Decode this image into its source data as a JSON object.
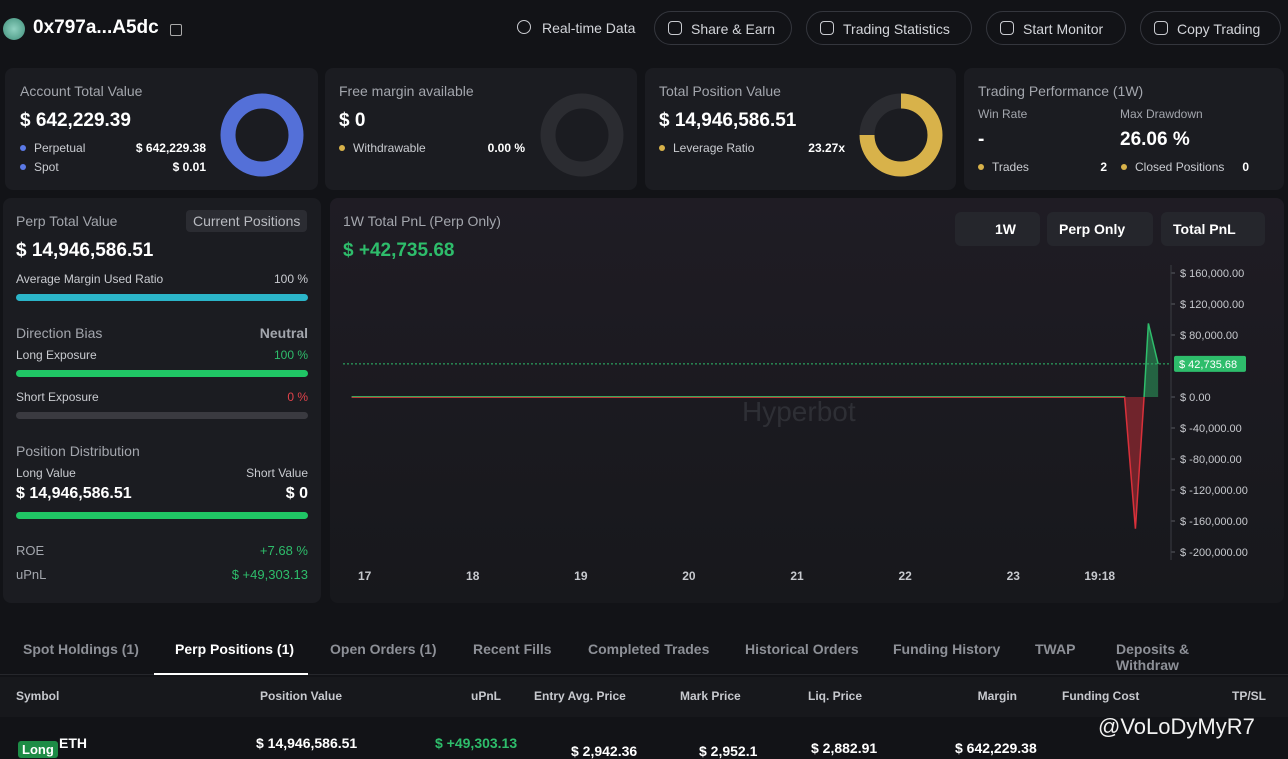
{
  "header": {
    "address": "0x797a...A5dc",
    "buttons": [
      "Real-time Data",
      "Share & Earn",
      "Trading Statistics",
      "Start Monitor",
      "Copy Trading"
    ]
  },
  "cards": {
    "account": {
      "title": "Account Total Value",
      "value": "$ 642,229.39",
      "rows": [
        {
          "label": "Perpetual",
          "value": "$ 642,229.38"
        },
        {
          "label": "Spot",
          "value": "$ 0.01"
        }
      ]
    },
    "margin": {
      "title": "Free margin available",
      "value": "$ 0",
      "rows": [
        {
          "label": "Withdrawable",
          "value": "0.00 %"
        }
      ]
    },
    "position": {
      "title": "Total Position Value",
      "value": "$ 14,946,586.51",
      "rows": [
        {
          "label": "Leverage Ratio",
          "value": "23.27x"
        }
      ]
    },
    "performance": {
      "title": "Trading Performance (1W)",
      "win_rate_label": "Win Rate",
      "win_rate": "-",
      "drawdown_label": "Max Drawdown",
      "drawdown": "26.06 %",
      "trades_label": "Trades",
      "trades": "2",
      "closed_label": "Closed Positions",
      "closed": "0"
    }
  },
  "perp": {
    "title": "Perp Total Value",
    "button": "Current Positions",
    "value": "$ 14,946,586.51",
    "margin_ratio_label": "Average Margin Used Ratio",
    "margin_ratio": "100 %",
    "bias_label": "Direction Bias",
    "bias": "Neutral",
    "long_label": "Long Exposure",
    "long": "100 %",
    "short_label": "Short Exposure",
    "short": "0 %",
    "distribution_label": "Position Distribution",
    "long_value_label": "Long Value",
    "short_value_label": "Short Value",
    "long_value": "$ 14,946,586.51",
    "short_value": "$ 0",
    "roe_label": "ROE",
    "roe": "+7.68 %",
    "upnl_label": "uPnL",
    "upnl": "$ +49,303.13"
  },
  "pnl_chart": {
    "type": "line",
    "title": "1W Total PnL (Perp Only)",
    "total": "$ +42,735.68",
    "selectors": [
      "1W",
      "Perp Only",
      "Total PnL"
    ],
    "watermark": "Hyperbot",
    "x": [
      16.88,
      24.03,
      24.13,
      24.21,
      24.25,
      24.34
    ],
    "series": [
      {
        "color": "#2ebd6b",
        "negative_color": "#d9303a",
        "values": [
          0,
          0,
          -170000,
          0,
          95000,
          42735.68
        ]
      }
    ],
    "current": {
      "value": 42735.68,
      "label": "$ 42,735.68"
    },
    "xlim": [
      16.8,
      24.45
    ],
    "xticks": [
      17,
      18,
      19,
      20,
      21,
      22,
      23,
      {
        "value": 23.8,
        "label": "19:18"
      }
    ],
    "ylim": [
      -200000,
      160000
    ],
    "yticks": [
      {
        "value": 160000,
        "label": "$ 160,000.00"
      },
      {
        "value": 120000,
        "label": "$ 120,000.00"
      },
      {
        "value": 80000,
        "label": "$ 80,000.00"
      },
      {
        "value": 0,
        "label": "$ 0.00"
      },
      {
        "value": -40000,
        "label": "$ -40,000.00"
      },
      {
        "value": -80000,
        "label": "$ -80,000.00"
      },
      {
        "value": -120000,
        "label": "$ -120,000.00"
      },
      {
        "value": -160000,
        "label": "$ -160,000.00"
      },
      {
        "value": -200000,
        "label": "$ -200,000.00"
      }
    ]
  },
  "tabs": [
    "Spot Holdings (1)",
    "Perp Positions (1)",
    "Open Orders (1)",
    "Recent Fills",
    "Completed Trades",
    "Historical Orders",
    "Funding History",
    "TWAP",
    "Deposits & Withdraw"
  ],
  "table": {
    "headers": [
      "Symbol",
      "Position Value",
      "uPnL",
      "Entry Avg. Price",
      "Mark Price",
      "Liq. Price",
      "Margin",
      "Funding Cost",
      "TP/SL"
    ],
    "rows": [
      [
        "Long",
        "ETH",
        "$ 14,946,586.51",
        "$ +49,303.13",
        "$ 2,942.36",
        "$ 2,952.1",
        "$ 2,882.91",
        "$ 642,229.38"
      ]
    ]
  },
  "watermark": "@VoLoDyMyR7"
}
